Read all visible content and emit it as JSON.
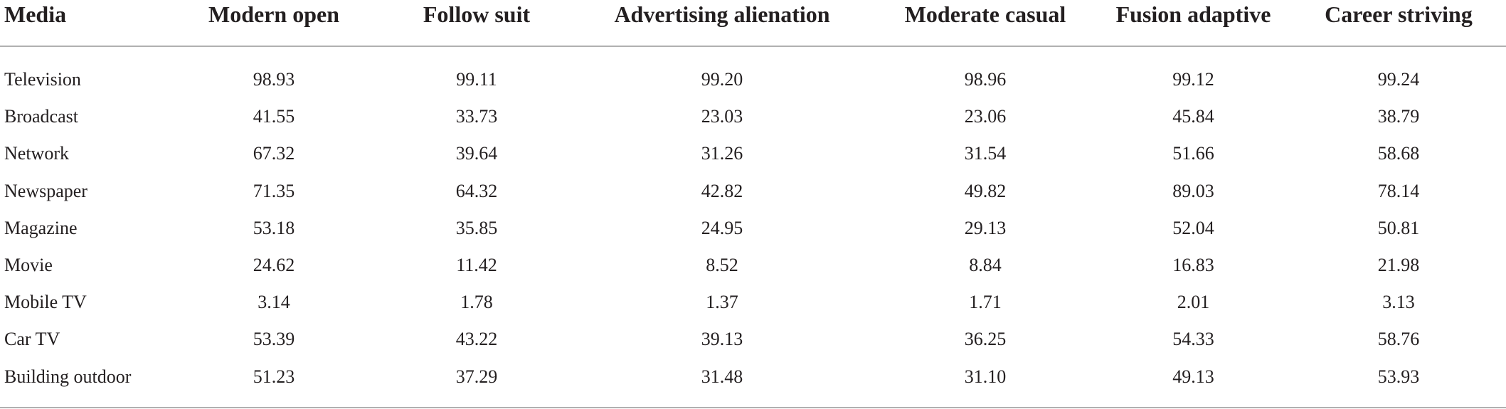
{
  "table": {
    "columns": [
      "Media",
      "Modern open",
      "Follow suit",
      "Advertising alienation",
      "Moderate casual",
      "Fusion adaptive",
      "Career striving"
    ],
    "rows": [
      {
        "media": "Television",
        "values": [
          "98.93",
          "99.11",
          "99.20",
          "98.96",
          "99.12",
          "99.24"
        ]
      },
      {
        "media": "Broadcast",
        "values": [
          "41.55",
          "33.73",
          "23.03",
          "23.06",
          "45.84",
          "38.79"
        ]
      },
      {
        "media": "Network",
        "values": [
          "67.32",
          "39.64",
          "31.26",
          "31.54",
          "51.66",
          "58.68"
        ]
      },
      {
        "media": "Newspaper",
        "values": [
          "71.35",
          "64.32",
          "42.82",
          "49.82",
          "89.03",
          "78.14"
        ]
      },
      {
        "media": "Magazine",
        "values": [
          "53.18",
          "35.85",
          "24.95",
          "29.13",
          "52.04",
          "50.81"
        ]
      },
      {
        "media": "Movie",
        "values": [
          "24.62",
          "11.42",
          "8.52",
          "8.84",
          "16.83",
          "21.98"
        ]
      },
      {
        "media": "Mobile TV",
        "values": [
          "3.14",
          "1.78",
          "1.37",
          "1.71",
          "2.01",
          "3.13"
        ]
      },
      {
        "media": "Car TV",
        "values": [
          "53.39",
          "43.22",
          "39.13",
          "36.25",
          "54.33",
          "58.76"
        ]
      },
      {
        "media": "Building outdoor",
        "values": [
          "51.23",
          "37.29",
          "31.48",
          "31.10",
          "49.13",
          "53.93"
        ]
      }
    ]
  }
}
